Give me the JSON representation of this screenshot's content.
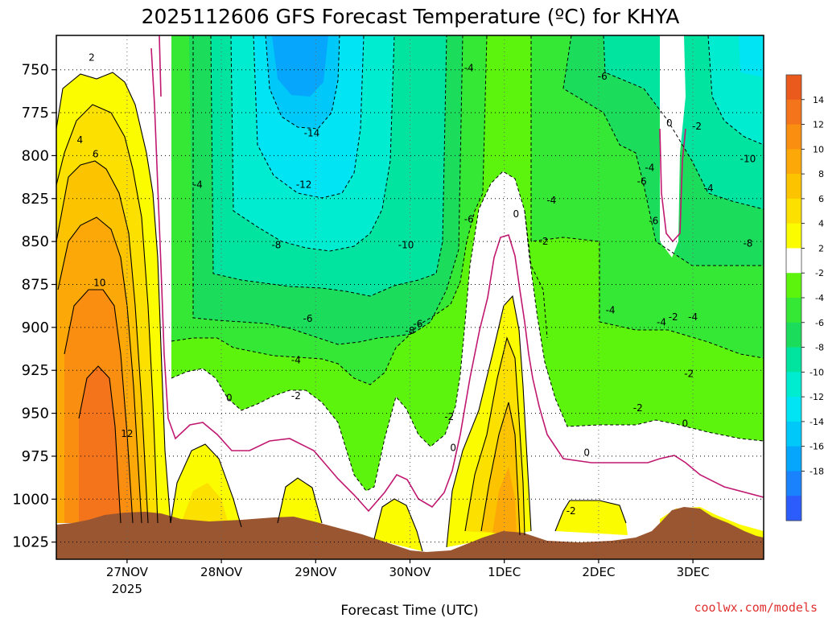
{
  "chart_data": {
    "type": "contour",
    "title": "2025112606 GFS Forecast Temperature (ºC) for KHYA",
    "xlabel": "Forecast Time (UTC)",
    "ylabel": "",
    "y_scale": "pressure (hPa), inverted",
    "ylim": [
      1035,
      730
    ],
    "xlim_days": [
      "2025-11-26 06Z",
      "2025-12-03 18Z"
    ],
    "x_ticks": [
      {
        "day": "2025-11-27",
        "label": "27NOV",
        "sub": "2025"
      },
      {
        "day": "2025-11-28",
        "label": "28NOV",
        "sub": ""
      },
      {
        "day": "2025-11-29",
        "label": "29NOV",
        "sub": ""
      },
      {
        "day": "2025-11-30",
        "label": "30NOV",
        "sub": ""
      },
      {
        "day": "2025-12-01",
        "label": "1DEC",
        "sub": ""
      },
      {
        "day": "2025-12-02",
        "label": "2DEC",
        "sub": ""
      },
      {
        "day": "2025-12-03",
        "label": "3DEC",
        "sub": ""
      }
    ],
    "y_ticks": [
      750,
      775,
      800,
      825,
      850,
      875,
      900,
      925,
      950,
      975,
      1000,
      1025
    ],
    "grid": true,
    "colorbar": {
      "placement": "right",
      "levels": [
        14,
        12,
        10,
        8,
        6,
        4,
        2,
        -2,
        -4,
        -6,
        -8,
        -10,
        -12,
        -14,
        -16,
        -18
      ],
      "colors": [
        "#ea5a1c",
        "#f4741c",
        "#f98e10",
        "#fca808",
        "#fcc400",
        "#fce000",
        "#fcfc00",
        "#ffffff",
        "#5cf40c",
        "#36e836",
        "#1cdc5c",
        "#00e4a0",
        "#00ecd0",
        "#00e4f4",
        "#00c8f8",
        "#06a6fc",
        "#1a82fc",
        "#2c5cfc"
      ]
    },
    "ground_color": "#9a5630",
    "contour_labels": [
      {
        "t": "2025-11-26 15Z",
        "p": 743,
        "v": "2"
      },
      {
        "t": "2025-11-26 12Z",
        "p": 791,
        "v": "4"
      },
      {
        "t": "2025-11-26 16Z",
        "p": 799,
        "v": "6"
      },
      {
        "t": "2025-11-26 17Z",
        "p": 874,
        "v": "10"
      },
      {
        "t": "2025-11-27 00Z",
        "p": 962,
        "v": "12"
      },
      {
        "t": "2025-11-27 18Z",
        "p": 817,
        "v": "-4"
      },
      {
        "t": "2025-11-28 02Z",
        "p": 941,
        "v": "0"
      },
      {
        "t": "2025-11-28 23Z",
        "p": 787,
        "v": "-14"
      },
      {
        "t": "2025-11-28 21Z",
        "p": 817,
        "v": "-12"
      },
      {
        "t": "2025-11-29 23Z",
        "p": 852,
        "v": "-10"
      },
      {
        "t": "2025-11-28 14Z",
        "p": 852,
        "v": "-8"
      },
      {
        "t": "2025-11-28 22Z",
        "p": 895,
        "v": "-6"
      },
      {
        "t": "2025-11-28 19Z",
        "p": 919,
        "v": "-4"
      },
      {
        "t": "2025-11-28 19Z",
        "p": 940,
        "v": "-2"
      },
      {
        "t": "2025-11-30 00Z",
        "p": 902,
        "v": "-8"
      },
      {
        "t": "2025-11-30 02Z",
        "p": 898,
        "v": "-6"
      },
      {
        "t": "2025-11-30 15Z",
        "p": 749,
        "v": "-4"
      },
      {
        "t": "2025-11-30 15Z",
        "p": 837,
        "v": "-6"
      },
      {
        "t": "2025-11-30 10Z",
        "p": 952,
        "v": "-2"
      },
      {
        "t": "2025-11-30 11Z",
        "p": 970,
        "v": "0"
      },
      {
        "t": "2025-12-01 03Z",
        "p": 834,
        "v": "0"
      },
      {
        "t": "2025-12-01 12Z",
        "p": 826,
        "v": "-4"
      },
      {
        "t": "2025-12-01 10Z",
        "p": 850,
        "v": "-2"
      },
      {
        "t": "2025-12-01 17Z",
        "p": 1007,
        "v": "-2"
      },
      {
        "t": "2025-12-01 21Z",
        "p": 973,
        "v": "0"
      },
      {
        "t": "2025-12-02 03Z",
        "p": 890,
        "v": "-4"
      },
      {
        "t": "2025-12-02 01Z",
        "p": 754,
        "v": "-6"
      },
      {
        "t": "2025-12-02 10Z",
        "p": 947,
        "v": "-2"
      },
      {
        "t": "2025-12-02 13Z",
        "p": 807,
        "v": "-4"
      },
      {
        "t": "2025-12-02 11Z",
        "p": 815,
        "v": "-6"
      },
      {
        "t": "2025-12-02 14Z",
        "p": 838,
        "v": "-6"
      },
      {
        "t": "2025-12-02 18Z",
        "p": 781,
        "v": "0"
      },
      {
        "t": "2025-12-03 01Z",
        "p": 783,
        "v": "-2"
      },
      {
        "t": "2025-12-03 04Z",
        "p": 819,
        "v": "-4"
      },
      {
        "t": "2025-12-02 19Z",
        "p": 894,
        "v": "-2"
      },
      {
        "t": "2025-12-02 16Z",
        "p": 897,
        "v": "-4"
      },
      {
        "t": "2025-12-03 00Z",
        "p": 894,
        "v": "-4"
      },
      {
        "t": "2025-12-02 23Z",
        "p": 927,
        "v": "-2"
      },
      {
        "t": "2025-12-02 22Z",
        "p": 956,
        "v": "0"
      },
      {
        "t": "2025-12-03 14Z",
        "p": 802,
        "v": "-10"
      },
      {
        "t": "2025-12-03 14Z",
        "p": 851,
        "v": "-8"
      }
    ]
  },
  "source_text": "coolwx.com/models"
}
